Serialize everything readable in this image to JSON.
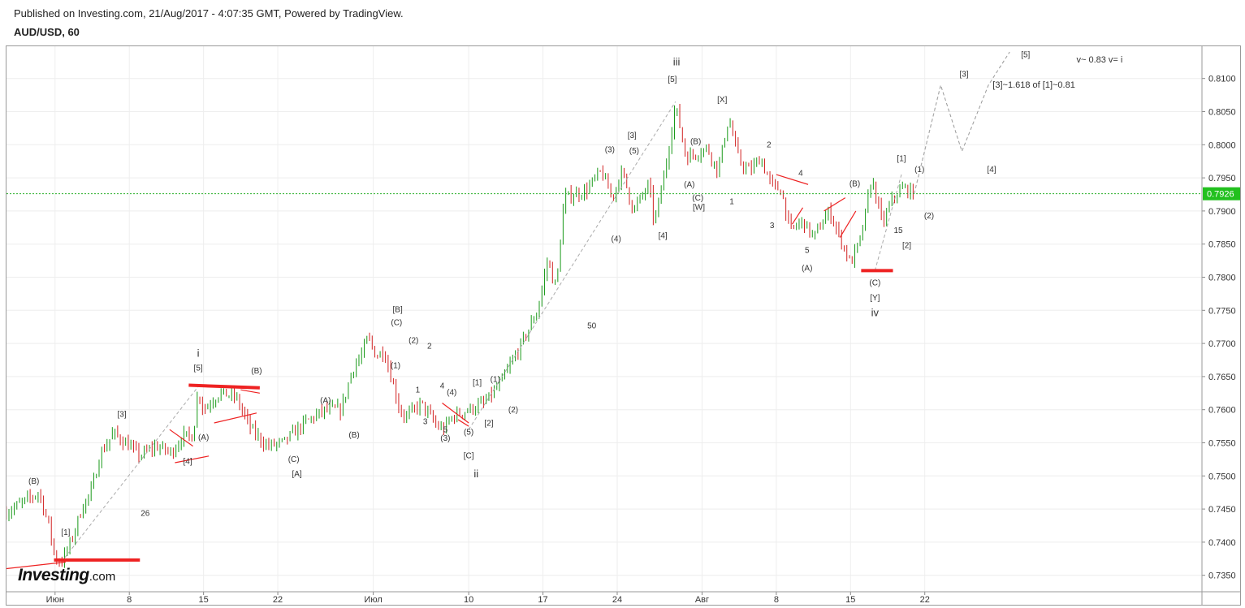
{
  "header": {
    "published": "Published on Investing.com, 21/Aug/2017 - 4:07:35 GMT, Powered by TradingView.",
    "symbol": "AUD/USD, 60"
  },
  "logo": {
    "brand": "Investing",
    "suffix": ".com"
  },
  "colors": {
    "up": "#1a9a1a",
    "down": "#d22222",
    "last_price_line": "#2bb02b",
    "last_price_badge": "#22c01e",
    "trend_lines": "#ee2222",
    "projection": "#999999",
    "grid": "#eeeeee"
  },
  "chart_data": {
    "type": "line",
    "title": "AUD/USD, 60",
    "price_axis": {
      "position": "right",
      "range": [
        0.733,
        0.814
      ],
      "ticks": [
        "0.8100",
        "0.8050",
        "0.8000",
        "0.7950",
        "0.7900",
        "0.7850",
        "0.7800",
        "0.7750",
        "0.7700",
        "0.7650",
        "0.7600",
        "0.7550",
        "0.7500",
        "0.7450",
        "0.7400",
        "0.7350"
      ]
    },
    "time_axis": {
      "ticks": [
        "Июн",
        "8",
        "15",
        "22",
        "Июл",
        "10",
        "17",
        "24",
        "Авг",
        "8",
        "15",
        "22"
      ],
      "tick_days": [
        1,
        8,
        15,
        22,
        31,
        40,
        47,
        54,
        62,
        69,
        76,
        83
      ]
    },
    "last_price": 0.7926,
    "grid": true,
    "series": [
      {
        "x": [
          -3.6,
          -0.5,
          0.5,
          1,
          1.6,
          2.5,
          3.5,
          4.5,
          5.2,
          6.5,
          8,
          9,
          10.5,
          12,
          13,
          14,
          14.5,
          15,
          16.5,
          18,
          19.5,
          21,
          22.5,
          24.5,
          26.5,
          28,
          29,
          30,
          30.5,
          31.3,
          32,
          32.5,
          33.6,
          34.2,
          35.5,
          37,
          37.6,
          38.5,
          40,
          41.5,
          43,
          45,
          46.5,
          47.5,
          48,
          48.3,
          49,
          51,
          52.5,
          53.5,
          54.5,
          55.5,
          57,
          57.5,
          58.5,
          59.5,
          60.5,
          62.5,
          63.5,
          64.5,
          65.5,
          66.5,
          67.5,
          68.5,
          69.5,
          70.3,
          71.5,
          72.5,
          74,
          75,
          76,
          77,
          78,
          79,
          80,
          81,
          82
        ],
        "y": [
          0.7445,
          0.7475,
          0.742,
          0.7375,
          0.737,
          0.74,
          0.745,
          0.748,
          0.753,
          0.7565,
          0.7545,
          0.753,
          0.7545,
          0.7535,
          0.756,
          0.756,
          0.763,
          0.76,
          0.7625,
          0.762,
          0.757,
          0.7545,
          0.755,
          0.758,
          0.76,
          0.76,
          0.766,
          0.7685,
          0.771,
          0.768,
          0.769,
          0.766,
          0.7595,
          0.759,
          0.761,
          0.7575,
          0.757,
          0.759,
          0.76,
          0.761,
          0.764,
          0.77,
          0.775,
          0.783,
          0.779,
          0.779,
          0.792,
          0.793,
          0.796,
          0.792,
          0.796,
          0.79,
          0.794,
          0.788,
          0.796,
          0.806,
          0.798,
          0.7995,
          0.796,
          0.804,
          0.7975,
          0.796,
          0.798,
          0.794,
          0.793,
          0.787,
          0.7885,
          0.786,
          0.79,
          0.786,
          0.782,
          0.786,
          0.795,
          0.788,
          0.792,
          0.7935,
          0.7926
        ]
      },
      {
        "name": "projection",
        "x": [
          82,
          84.5,
          86.5,
          89,
          91
        ],
        "y": [
          0.7926,
          0.809,
          0.799,
          0.809,
          0.814
        ]
      }
    ]
  },
  "lines": {
    "label_i": "1",
    "label_u2": "2",
    "label_4": "4",
    "label_v": "5"
  },
  "annotations": [
    {
      "text": "(B)",
      "x": -1,
      "y": 0.7488
    },
    {
      "text": "[1]",
      "x": 2,
      "y": 0.7411
    },
    {
      "text": "[3]",
      "x": 7.3,
      "y": 0.7589
    },
    {
      "text": "26",
      "x": 9.5,
      "y": 0.744
    },
    {
      "text": "[4]",
      "x": 13.5,
      "y": 0.7518
    },
    {
      "text": "(A)",
      "x": 15,
      "y": 0.7554
    },
    {
      "text": "i",
      "x": 14.5,
      "y": 0.768
    },
    {
      "text": "[5]",
      "x": 14.5,
      "y": 0.7659
    },
    {
      "text": "(B)",
      "x": 20,
      "y": 0.7655
    },
    {
      "text": "(C)",
      "x": 23.5,
      "y": 0.7521
    },
    {
      "text": "[A]",
      "x": 23.8,
      "y": 0.7499
    },
    {
      "text": "(A)",
      "x": 26.5,
      "y": 0.761
    },
    {
      "text": "(B)",
      "x": 29.2,
      "y": 0.7558
    },
    {
      "text": "[B]",
      "x": 33.3,
      "y": 0.7747
    },
    {
      "text": "(C)",
      "x": 33.2,
      "y": 0.7728
    },
    {
      "text": "(2)",
      "x": 34.8,
      "y": 0.7701
    },
    {
      "text": "2",
      "x": 36.3,
      "y": 0.7692
    },
    {
      "text": "(1)",
      "x": 33.1,
      "y": 0.7663
    },
    {
      "text": "1",
      "x": 35.2,
      "y": 0.7626
    },
    {
      "text": "4",
      "x": 37.5,
      "y": 0.7632
    },
    {
      "text": "(4)",
      "x": 38.4,
      "y": 0.7622
    },
    {
      "text": "3",
      "x": 35.9,
      "y": 0.7578
    },
    {
      "text": "5",
      "x": 37.8,
      "y": 0.7566
    },
    {
      "text": "(3)",
      "x": 37.8,
      "y": 0.7553
    },
    {
      "text": "(5)",
      "x": 40,
      "y": 0.7562
    },
    {
      "text": "[C]",
      "x": 40,
      "y": 0.7527
    },
    {
      "text": "ii",
      "x": 40.7,
      "y": 0.7498
    },
    {
      "text": "[1]",
      "x": 40.8,
      "y": 0.7637
    },
    {
      "text": "(1)",
      "x": 42.5,
      "y": 0.7642
    },
    {
      "text": "[2]",
      "x": 41.9,
      "y": 0.7576
    },
    {
      "text": "(2)",
      "x": 44.2,
      "y": 0.7596
    },
    {
      "text": "50",
      "x": 51.6,
      "y": 0.7723
    },
    {
      "text": "(3)",
      "x": 53.3,
      "y": 0.7989
    },
    {
      "text": "(5)",
      "x": 55.6,
      "y": 0.7987
    },
    {
      "text": "[3]",
      "x": 55.4,
      "y": 0.801
    },
    {
      "text": "(4)",
      "x": 53.9,
      "y": 0.7854
    },
    {
      "text": "[4]",
      "x": 58.3,
      "y": 0.7859
    },
    {
      "text": "iii",
      "x": 59.6,
      "y": 0.812
    },
    {
      "text": "[5]",
      "x": 59.2,
      "y": 0.8095
    },
    {
      "text": "(A)",
      "x": 60.8,
      "y": 0.7936
    },
    {
      "text": "(B)",
      "x": 61.4,
      "y": 0.8001
    },
    {
      "text": "(C)",
      "x": 61.6,
      "y": 0.7916
    },
    {
      "text": "[W]",
      "x": 61.7,
      "y": 0.7902
    },
    {
      "text": "[X]",
      "x": 63.9,
      "y": 0.8064
    },
    {
      "text": "1",
      "x": 64.8,
      "y": 0.791
    },
    {
      "text": "2",
      "x": 68.3,
      "y": 0.7996
    },
    {
      "text": "3",
      "x": 68.6,
      "y": 0.7874
    },
    {
      "text": "4",
      "x": 71.3,
      "y": 0.7953
    },
    {
      "text": "5",
      "x": 71.9,
      "y": 0.7837
    },
    {
      "text": "(A)",
      "x": 71.9,
      "y": 0.781
    },
    {
      "text": "(B)",
      "x": 76.4,
      "y": 0.7937
    },
    {
      "text": "(C)",
      "x": 78.3,
      "y": 0.7788
    },
    {
      "text": "[Y]",
      "x": 78.3,
      "y": 0.7765
    },
    {
      "text": "iv",
      "x": 78.3,
      "y": 0.7741
    },
    {
      "text": "15",
      "x": 80.5,
      "y": 0.7867
    },
    {
      "text": "[2]",
      "x": 81.3,
      "y": 0.7844
    },
    {
      "text": "[1]",
      "x": 80.8,
      "y": 0.7975
    },
    {
      "text": "(1)",
      "x": 82.5,
      "y": 0.7959
    },
    {
      "text": "(2)",
      "x": 83.4,
      "y": 0.7889
    },
    {
      "text": "[3]",
      "x": 86.7,
      "y": 0.8103
    },
    {
      "text": "[3]~1.618 of [1]~0.81",
      "x": 89.4,
      "y": 0.8086
    },
    {
      "text": "[4]",
      "x": 89.3,
      "y": 0.7959
    },
    {
      "text": "[5]",
      "x": 92.5,
      "y": 0.8132
    },
    {
      "text": "v~ 0.83 v= i",
      "x": 97.3,
      "y": 0.8124
    }
  ]
}
